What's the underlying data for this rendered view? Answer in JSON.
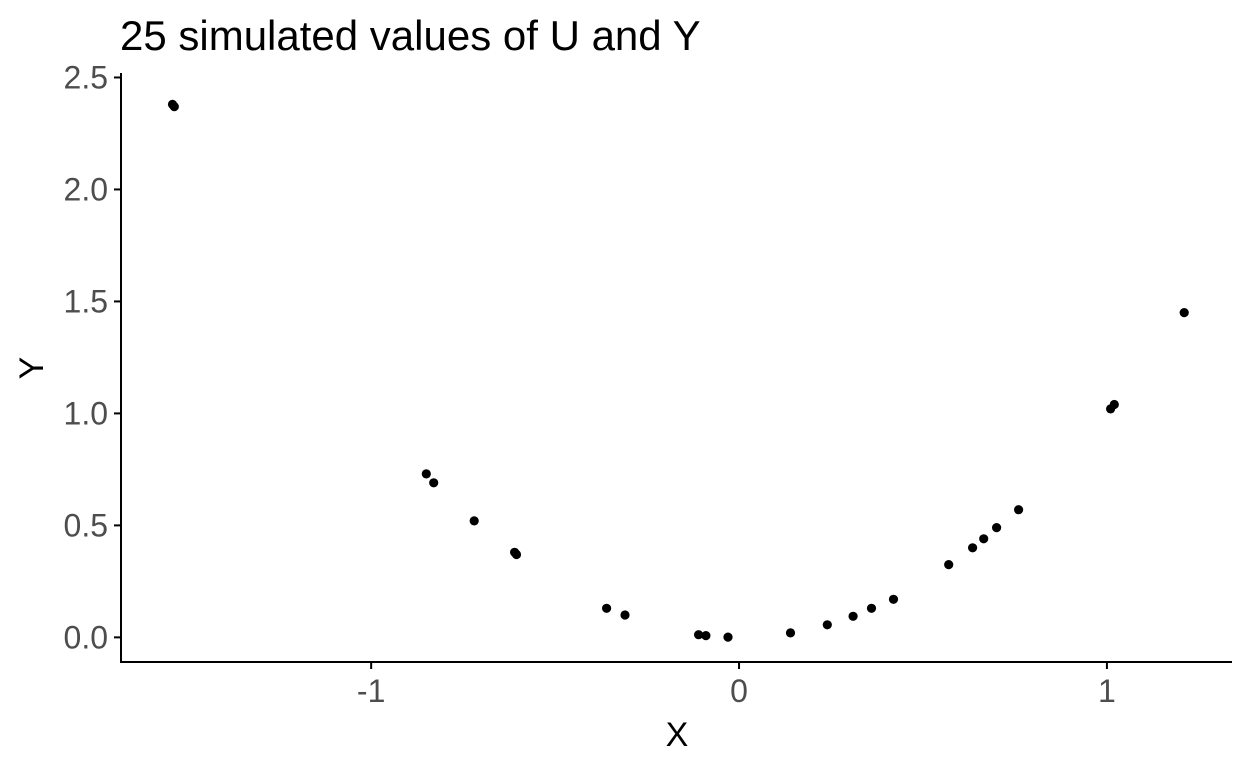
{
  "chart_data": {
    "type": "scatter",
    "title": "25 simulated values of U and Y",
    "xlabel": "X",
    "ylabel": "Y",
    "xlim": [
      -1.68,
      1.34
    ],
    "ylim": [
      -0.11,
      2.52
    ],
    "x_ticks": [
      -1,
      0,
      1
    ],
    "x_tick_labels": [
      "-1",
      "0",
      "1"
    ],
    "y_ticks": [
      0.0,
      0.5,
      1.0,
      1.5,
      2.0,
      2.5
    ],
    "y_tick_labels": [
      "0.0",
      "0.5",
      "1.0",
      "1.5",
      "2.0",
      "2.5"
    ],
    "grid": false,
    "legend": "none",
    "point_color": "#000000",
    "axis_color": "#000000",
    "tick_label_color": "#4d4d4d",
    "points": [
      {
        "x": -1.54,
        "y": 2.38
      },
      {
        "x": -1.535,
        "y": 2.37
      },
      {
        "x": -0.85,
        "y": 0.73
      },
      {
        "x": -0.83,
        "y": 0.69
      },
      {
        "x": -0.72,
        "y": 0.52
      },
      {
        "x": -0.61,
        "y": 0.38
      },
      {
        "x": -0.605,
        "y": 0.37
      },
      {
        "x": -0.36,
        "y": 0.13
      },
      {
        "x": -0.31,
        "y": 0.1
      },
      {
        "x": -0.11,
        "y": 0.012
      },
      {
        "x": -0.09,
        "y": 0.008
      },
      {
        "x": -0.03,
        "y": 0.001
      },
      {
        "x": 0.14,
        "y": 0.02
      },
      {
        "x": 0.24,
        "y": 0.056
      },
      {
        "x": 0.31,
        "y": 0.094
      },
      {
        "x": 0.36,
        "y": 0.13
      },
      {
        "x": 0.42,
        "y": 0.17
      },
      {
        "x": 0.57,
        "y": 0.325
      },
      {
        "x": 0.635,
        "y": 0.4
      },
      {
        "x": 0.665,
        "y": 0.44
      },
      {
        "x": 0.7,
        "y": 0.49
      },
      {
        "x": 0.76,
        "y": 0.57
      },
      {
        "x": 1.01,
        "y": 1.02
      },
      {
        "x": 1.02,
        "y": 1.04
      },
      {
        "x": 1.21,
        "y": 1.45
      }
    ]
  }
}
